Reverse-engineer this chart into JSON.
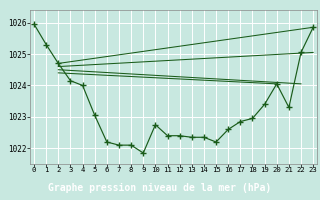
{
  "background_color": "#c8e8e0",
  "label_bg_color": "#2d6e2d",
  "label_text_color": "#ffffff",
  "grid_color": "#b0d8d0",
  "line_color": "#1a5c1a",
  "xlabel": "Graphe pression niveau de la mer (hPa)",
  "xlabel_fontsize": 7.0,
  "ylim": [
    1021.5,
    1026.4
  ],
  "xlim": [
    -0.3,
    23.3
  ],
  "yticks": [
    1022,
    1023,
    1024,
    1025,
    1026
  ],
  "ytick_labels": [
    "1022",
    "1023",
    "1024",
    "1025",
    "1026"
  ],
  "xtick_labels": [
    "0",
    "1",
    "2",
    "3",
    "4",
    "5",
    "6",
    "7",
    "8",
    "9",
    "10",
    "11",
    "12",
    "13",
    "14",
    "15",
    "16",
    "17",
    "18",
    "19",
    "20",
    "21",
    "22",
    "23"
  ],
  "main_x": [
    0,
    1,
    2,
    3,
    4,
    5,
    6,
    7,
    8,
    9,
    10,
    11,
    12,
    13,
    14,
    15,
    16,
    17,
    18,
    19,
    20,
    21,
    22,
    23
  ],
  "main_y": [
    1025.95,
    1025.3,
    1024.7,
    1024.15,
    1024.0,
    1023.05,
    1022.2,
    1022.1,
    1022.1,
    1021.85,
    1022.75,
    1022.4,
    1022.4,
    1022.35,
    1022.35,
    1022.2,
    1022.6,
    1022.85,
    1022.95,
    1023.4,
    1024.05,
    1023.3,
    1025.05,
    1025.85
  ],
  "trend1_x": [
    2,
    23
  ],
  "trend1_y": [
    1024.7,
    1025.85
  ],
  "trend2_x": [
    2,
    23
  ],
  "trend2_y": [
    1024.6,
    1025.05
  ],
  "trend3_x": [
    2,
    22
  ],
  "trend3_y": [
    1024.5,
    1024.05
  ],
  "trend4_x": [
    2,
    20
  ],
  "trend4_y": [
    1024.4,
    1024.05
  ]
}
